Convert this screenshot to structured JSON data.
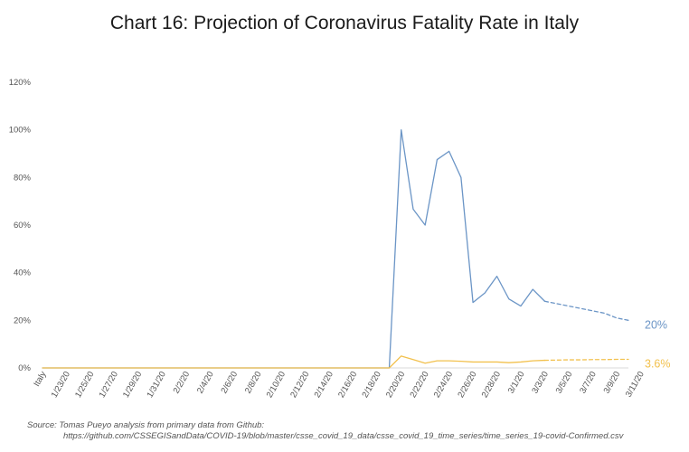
{
  "chart_data": {
    "type": "line",
    "title": "Chart 16: Projection of Coronavirus Fatality Rate in Italy",
    "xlabel": "",
    "ylabel": "",
    "ylim": [
      0,
      120
    ],
    "yticks": [
      "0%",
      "20%",
      "40%",
      "60%",
      "80%",
      "100%",
      "120%"
    ],
    "grid": false,
    "x_tick_labels": [
      "Italy",
      "1/23/20",
      "1/25/20",
      "1/27/20",
      "1/29/20",
      "1/31/20",
      "2/2/20",
      "2/4/20",
      "2/6/20",
      "2/8/20",
      "2/10/20",
      "2/12/20",
      "2/14/20",
      "2/16/20",
      "2/18/20",
      "2/20/20",
      "2/22/20",
      "2/24/20",
      "2/26/20",
      "2/28/20",
      "3/1/20",
      "3/3/20",
      "3/5/20",
      "3/7/20",
      "3/9/20",
      "3/11/20"
    ],
    "x": [
      "1/22/20",
      "1/23/20",
      "1/24/20",
      "1/25/20",
      "1/26/20",
      "1/27/20",
      "1/28/20",
      "1/29/20",
      "1/30/20",
      "1/31/20",
      "2/1/20",
      "2/2/20",
      "2/3/20",
      "2/4/20",
      "2/5/20",
      "2/6/20",
      "2/7/20",
      "2/8/20",
      "2/9/20",
      "2/10/20",
      "2/11/20",
      "2/12/20",
      "2/13/20",
      "2/14/20",
      "2/15/20",
      "2/16/20",
      "2/17/20",
      "2/18/20",
      "2/19/20",
      "2/20/20",
      "2/21/20",
      "2/22/20",
      "2/23/20",
      "2/24/20",
      "2/25/20",
      "2/26/20",
      "2/27/20",
      "2/28/20",
      "2/29/20",
      "3/1/20",
      "3/2/20",
      "3/3/20",
      "3/4/20",
      "3/5/20",
      "3/6/20",
      "3/7/20",
      "3/8/20",
      "3/9/20",
      "3/10/20",
      "3/11/20"
    ],
    "series": [
      {
        "color": "#6b95c6",
        "values": [
          0,
          0,
          0,
          0,
          0,
          0,
          0,
          0,
          0,
          0,
          0,
          0,
          0,
          0,
          0,
          0,
          0,
          0,
          0,
          0,
          0,
          0,
          0,
          0,
          0,
          0,
          0,
          0,
          0,
          0,
          100,
          66.7,
          60,
          87.5,
          91,
          80,
          27.5,
          31.5,
          38.5,
          29,
          26,
          33,
          28,
          null,
          null,
          null,
          null,
          null,
          null,
          null
        ]
      },
      {
        "color": "#6b95c6",
        "dashed": true,
        "values": [
          null,
          null,
          null,
          null,
          null,
          null,
          null,
          null,
          null,
          null,
          null,
          null,
          null,
          null,
          null,
          null,
          null,
          null,
          null,
          null,
          null,
          null,
          null,
          null,
          null,
          null,
          null,
          null,
          null,
          null,
          null,
          null,
          null,
          null,
          null,
          null,
          null,
          null,
          null,
          null,
          null,
          null,
          28,
          27,
          26,
          25,
          24,
          23,
          21,
          20
        ],
        "end_label": "20%"
      },
      {
        "color": "#f2c14e",
        "values": [
          0,
          0,
          0,
          0,
          0,
          0,
          0,
          0,
          0,
          0,
          0,
          0,
          0,
          0,
          0,
          0,
          0,
          0,
          0,
          0,
          0,
          0,
          0,
          0,
          0,
          0,
          0,
          0,
          0,
          0,
          5,
          3.5,
          2,
          3,
          3,
          2.8,
          2.5,
          2.5,
          2.5,
          2.2,
          2.5,
          3,
          3.2,
          null,
          null,
          null,
          null,
          null,
          null,
          null
        ]
      },
      {
        "color": "#f2c14e",
        "dashed": true,
        "values": [
          null,
          null,
          null,
          null,
          null,
          null,
          null,
          null,
          null,
          null,
          null,
          null,
          null,
          null,
          null,
          null,
          null,
          null,
          null,
          null,
          null,
          null,
          null,
          null,
          null,
          null,
          null,
          null,
          null,
          null,
          null,
          null,
          null,
          null,
          null,
          null,
          null,
          null,
          null,
          null,
          null,
          null,
          3.2,
          3.3,
          3.4,
          3.4,
          3.5,
          3.5,
          3.6,
          3.6
        ],
        "end_label": "3.6%"
      }
    ],
    "source": [
      "Source: Tomas Pueyo analysis from primary data from Github:",
      "https://github.com/CSSEGISandData/COVID-19/blob/master/csse_covid_19_data/csse_covid_19_time_series/time_series_19-covid-Confirmed.csv"
    ]
  }
}
